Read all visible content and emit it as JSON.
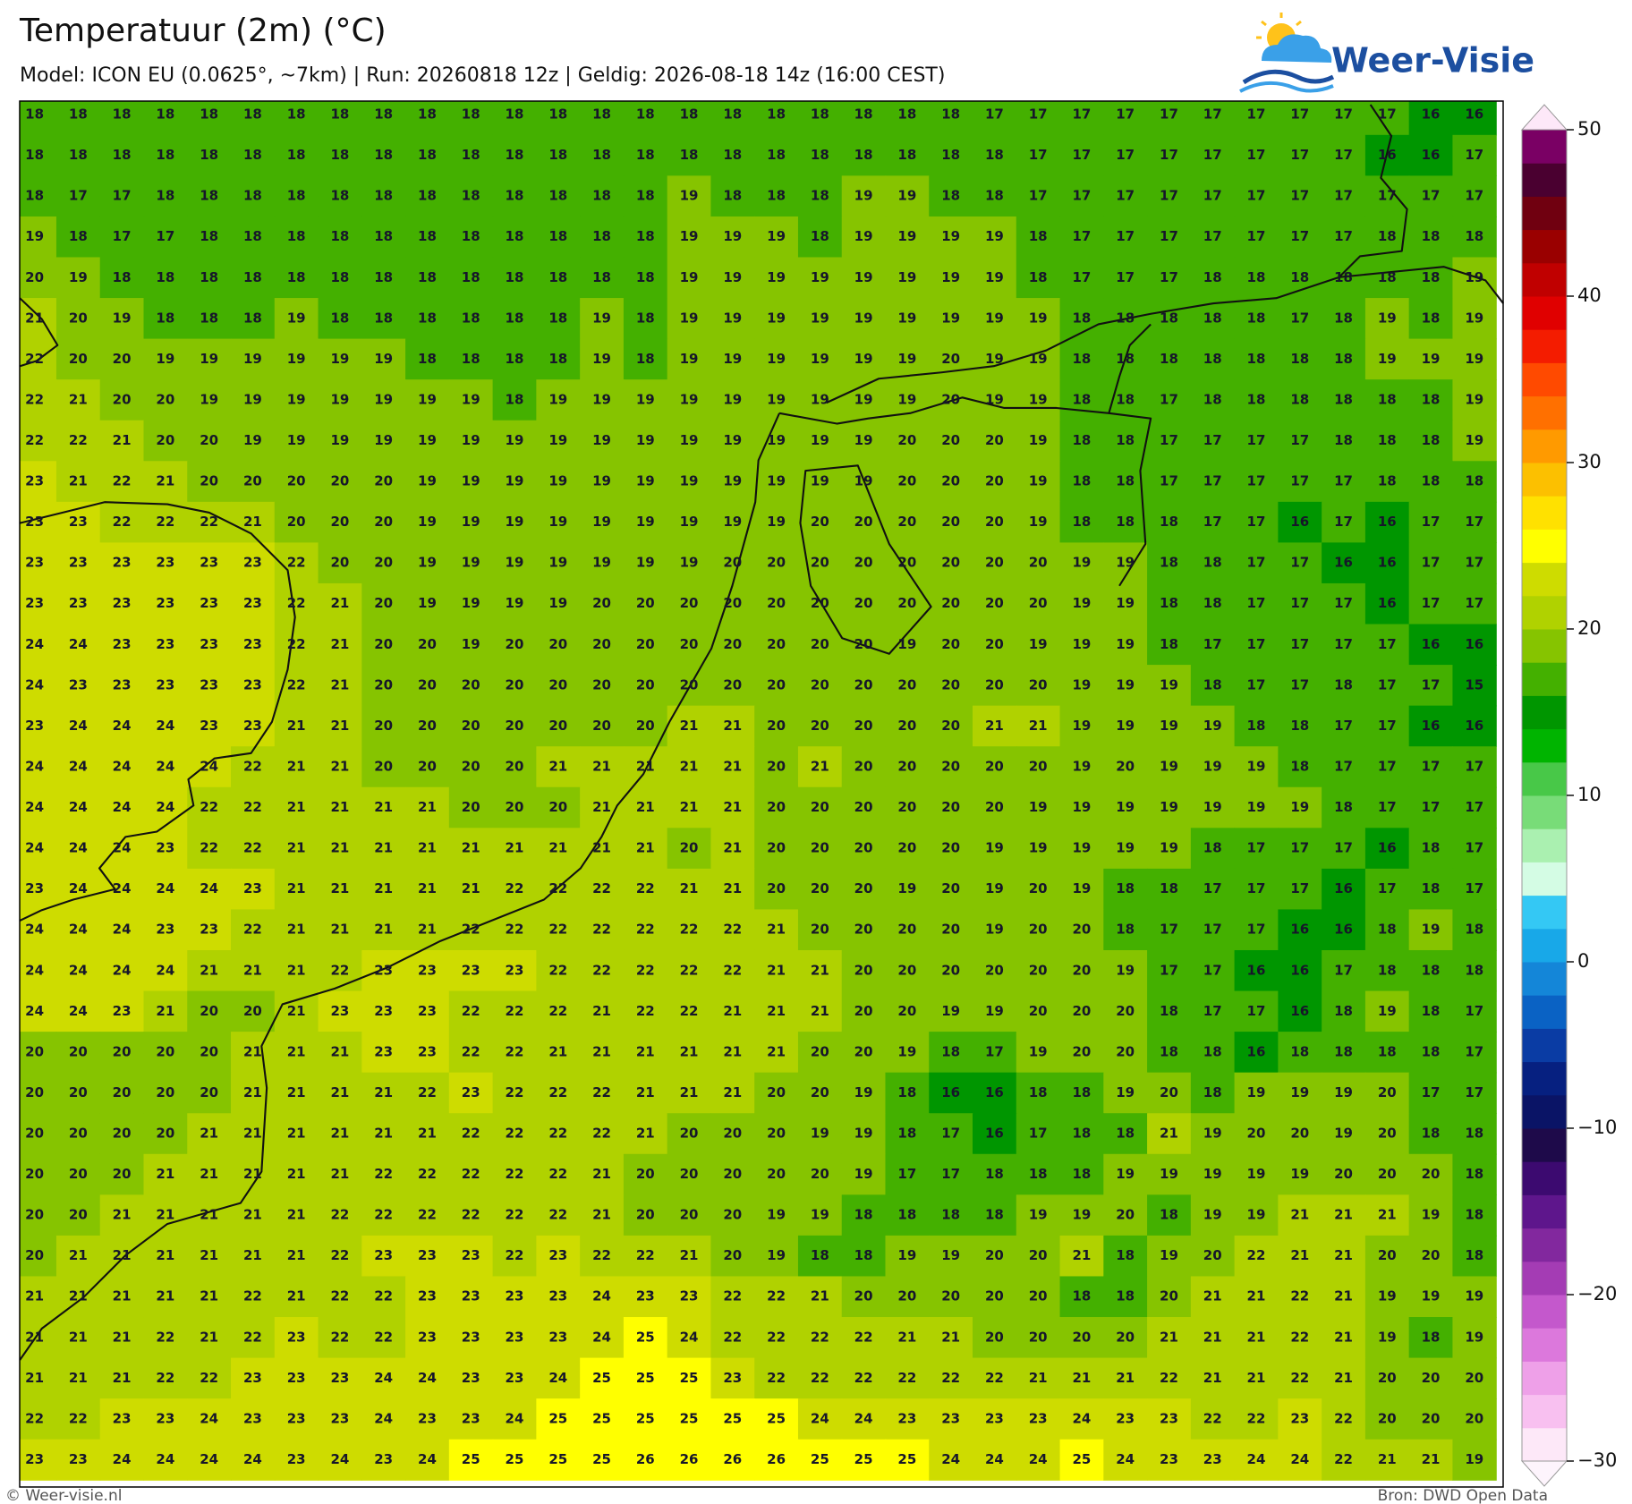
{
  "title": "Temperatuur (2m) (°C)",
  "subtitle": "Model: ICON EU (0.0625°, ~7km)  |  Run: 20260818 12z  |  Geldig: 2026-08-18 14z (16:00 CEST)",
  "logo_text": "Weer-Visie",
  "map": {
    "type": "heatmap",
    "values": [
      [
        18,
        18,
        18,
        18,
        18,
        18,
        18,
        18,
        18,
        18,
        18,
        18,
        18,
        18,
        18,
        18,
        18,
        18,
        18,
        18,
        18,
        18,
        17,
        17,
        17,
        17,
        17,
        17,
        17,
        17,
        17,
        17,
        16,
        16
      ],
      [
        18,
        18,
        18,
        18,
        18,
        18,
        18,
        18,
        18,
        18,
        18,
        18,
        18,
        18,
        18,
        18,
        18,
        18,
        18,
        18,
        18,
        18,
        18,
        17,
        17,
        17,
        17,
        17,
        17,
        17,
        17,
        16,
        16,
        17
      ],
      [
        18,
        17,
        17,
        18,
        18,
        18,
        18,
        18,
        18,
        18,
        18,
        18,
        18,
        18,
        18,
        19,
        18,
        18,
        18,
        19,
        19,
        18,
        18,
        17,
        17,
        17,
        17,
        17,
        17,
        17,
        17,
        17,
        17,
        17
      ],
      [
        19,
        18,
        17,
        17,
        18,
        18,
        18,
        18,
        18,
        18,
        18,
        18,
        18,
        18,
        18,
        19,
        19,
        19,
        18,
        19,
        19,
        19,
        19,
        18,
        17,
        17,
        17,
        17,
        17,
        17,
        17,
        18,
        18,
        18
      ],
      [
        20,
        19,
        18,
        18,
        18,
        18,
        18,
        18,
        18,
        18,
        18,
        18,
        18,
        18,
        18,
        19,
        19,
        19,
        19,
        19,
        19,
        19,
        19,
        18,
        17,
        17,
        17,
        18,
        18,
        18,
        18,
        18,
        18,
        19
      ],
      [
        21,
        20,
        19,
        18,
        18,
        18,
        19,
        18,
        18,
        18,
        18,
        18,
        18,
        19,
        18,
        19,
        19,
        19,
        19,
        19,
        19,
        19,
        19,
        19,
        18,
        18,
        18,
        18,
        18,
        17,
        18,
        19,
        18,
        19
      ],
      [
        22,
        20,
        20,
        19,
        19,
        19,
        19,
        19,
        19,
        18,
        18,
        18,
        18,
        19,
        18,
        19,
        19,
        19,
        19,
        19,
        19,
        20,
        19,
        19,
        18,
        18,
        18,
        18,
        18,
        18,
        18,
        19,
        19,
        19
      ],
      [
        22,
        21,
        20,
        20,
        19,
        19,
        19,
        19,
        19,
        19,
        19,
        18,
        19,
        19,
        19,
        19,
        19,
        19,
        19,
        19,
        19,
        20,
        19,
        19,
        18,
        18,
        17,
        18,
        18,
        18,
        18,
        18,
        18,
        19
      ],
      [
        22,
        22,
        21,
        20,
        20,
        19,
        19,
        19,
        19,
        19,
        19,
        19,
        19,
        19,
        19,
        19,
        19,
        19,
        19,
        19,
        20,
        20,
        20,
        19,
        18,
        18,
        17,
        17,
        17,
        17,
        18,
        18,
        18,
        19
      ],
      [
        23,
        21,
        22,
        21,
        20,
        20,
        20,
        20,
        20,
        19,
        19,
        19,
        19,
        19,
        19,
        19,
        19,
        19,
        19,
        19,
        20,
        20,
        20,
        19,
        18,
        18,
        17,
        17,
        17,
        17,
        17,
        18,
        18,
        18
      ],
      [
        23,
        23,
        22,
        22,
        22,
        21,
        20,
        20,
        20,
        19,
        19,
        19,
        19,
        19,
        19,
        19,
        19,
        19,
        20,
        20,
        20,
        20,
        20,
        19,
        18,
        18,
        18,
        17,
        17,
        16,
        17,
        16,
        17,
        17
      ],
      [
        23,
        23,
        23,
        23,
        23,
        23,
        22,
        20,
        20,
        19,
        19,
        19,
        19,
        19,
        19,
        19,
        20,
        20,
        20,
        20,
        20,
        20,
        20,
        20,
        19,
        19,
        18,
        18,
        17,
        17,
        16,
        16,
        17,
        17
      ],
      [
        23,
        23,
        23,
        23,
        23,
        23,
        22,
        21,
        20,
        19,
        19,
        19,
        19,
        20,
        20,
        20,
        20,
        20,
        20,
        20,
        20,
        20,
        20,
        20,
        19,
        19,
        18,
        18,
        17,
        17,
        17,
        16,
        17,
        17
      ],
      [
        24,
        24,
        23,
        23,
        23,
        23,
        22,
        21,
        20,
        20,
        19,
        20,
        20,
        20,
        20,
        20,
        20,
        20,
        20,
        20,
        19,
        20,
        20,
        19,
        19,
        19,
        18,
        17,
        17,
        17,
        17,
        17,
        16,
        16
      ],
      [
        24,
        23,
        23,
        23,
        23,
        23,
        22,
        21,
        20,
        20,
        20,
        20,
        20,
        20,
        20,
        20,
        20,
        20,
        20,
        20,
        20,
        20,
        20,
        20,
        19,
        19,
        19,
        18,
        17,
        17,
        18,
        17,
        17,
        15
      ],
      [
        23,
        24,
        24,
        24,
        23,
        23,
        21,
        21,
        20,
        20,
        20,
        20,
        20,
        20,
        20,
        21,
        21,
        20,
        20,
        20,
        20,
        20,
        21,
        21,
        19,
        19,
        19,
        19,
        18,
        18,
        17,
        17,
        16,
        16
      ],
      [
        24,
        24,
        24,
        24,
        24,
        22,
        21,
        21,
        20,
        20,
        20,
        20,
        21,
        21,
        21,
        21,
        21,
        20,
        21,
        20,
        20,
        20,
        20,
        20,
        19,
        20,
        19,
        19,
        19,
        18,
        17,
        17,
        17,
        17
      ],
      [
        24,
        24,
        24,
        24,
        22,
        22,
        21,
        21,
        21,
        21,
        20,
        20,
        20,
        21,
        21,
        21,
        21,
        20,
        20,
        20,
        20,
        20,
        20,
        19,
        19,
        19,
        19,
        19,
        19,
        19,
        18,
        17,
        17,
        17
      ],
      [
        24,
        24,
        24,
        23,
        22,
        22,
        21,
        21,
        21,
        21,
        21,
        21,
        21,
        21,
        21,
        20,
        21,
        20,
        20,
        20,
        20,
        20,
        19,
        19,
        19,
        19,
        19,
        18,
        17,
        17,
        17,
        16,
        18,
        17
      ],
      [
        23,
        24,
        24,
        24,
        24,
        23,
        21,
        21,
        21,
        21,
        21,
        22,
        22,
        22,
        22,
        21,
        21,
        20,
        20,
        20,
        19,
        20,
        19,
        20,
        19,
        18,
        18,
        17,
        17,
        17,
        16,
        17,
        18,
        17
      ],
      [
        24,
        24,
        24,
        23,
        23,
        22,
        21,
        21,
        21,
        21,
        22,
        22,
        22,
        22,
        22,
        22,
        22,
        21,
        20,
        20,
        20,
        20,
        19,
        20,
        20,
        18,
        17,
        17,
        17,
        16,
        16,
        18,
        19,
        18
      ],
      [
        24,
        24,
        24,
        24,
        21,
        21,
        21,
        22,
        23,
        23,
        23,
        23,
        22,
        22,
        22,
        22,
        22,
        21,
        21,
        20,
        20,
        20,
        20,
        20,
        20,
        19,
        17,
        17,
        16,
        16,
        17,
        18,
        18,
        18
      ],
      [
        24,
        24,
        23,
        21,
        20,
        20,
        21,
        23,
        23,
        23,
        22,
        22,
        22,
        21,
        22,
        22,
        21,
        21,
        21,
        20,
        20,
        19,
        19,
        20,
        20,
        20,
        18,
        17,
        17,
        16,
        18,
        19,
        18,
        17
      ],
      [
        20,
        20,
        20,
        20,
        20,
        21,
        21,
        21,
        23,
        23,
        22,
        22,
        21,
        21,
        21,
        21,
        21,
        21,
        20,
        20,
        19,
        18,
        17,
        19,
        20,
        20,
        18,
        18,
        16,
        18,
        18,
        18,
        18,
        17
      ],
      [
        20,
        20,
        20,
        20,
        20,
        21,
        21,
        21,
        21,
        22,
        23,
        22,
        22,
        22,
        21,
        21,
        21,
        20,
        20,
        19,
        18,
        16,
        16,
        18,
        18,
        19,
        20,
        18,
        19,
        19,
        19,
        20,
        17,
        17
      ],
      [
        20,
        20,
        20,
        20,
        21,
        21,
        21,
        21,
        21,
        21,
        22,
        22,
        22,
        22,
        21,
        20,
        20,
        20,
        19,
        19,
        18,
        17,
        16,
        17,
        18,
        18,
        21,
        19,
        20,
        20,
        19,
        20,
        18,
        18
      ],
      [
        20,
        20,
        20,
        21,
        21,
        21,
        21,
        21,
        22,
        22,
        22,
        22,
        22,
        21,
        20,
        20,
        20,
        20,
        20,
        19,
        17,
        17,
        18,
        18,
        18,
        19,
        19,
        19,
        19,
        19,
        20,
        20,
        20,
        18
      ],
      [
        20,
        20,
        21,
        21,
        21,
        21,
        21,
        22,
        22,
        22,
        22,
        22,
        22,
        21,
        20,
        20,
        20,
        19,
        19,
        18,
        18,
        18,
        18,
        19,
        19,
        20,
        18,
        19,
        19,
        21,
        21,
        21,
        19,
        18
      ],
      [
        20,
        21,
        21,
        21,
        21,
        21,
        21,
        22,
        23,
        23,
        23,
        22,
        23,
        22,
        22,
        21,
        20,
        19,
        18,
        18,
        19,
        19,
        20,
        20,
        21,
        18,
        19,
        20,
        22,
        21,
        21,
        20,
        20,
        18
      ],
      [
        21,
        21,
        21,
        21,
        21,
        22,
        21,
        22,
        22,
        23,
        23,
        23,
        23,
        24,
        23,
        23,
        22,
        22,
        21,
        20,
        20,
        20,
        20,
        20,
        18,
        18,
        20,
        21,
        21,
        22,
        21,
        19,
        19,
        19
      ],
      [
        21,
        21,
        21,
        22,
        21,
        22,
        23,
        22,
        22,
        23,
        23,
        23,
        23,
        24,
        25,
        24,
        22,
        22,
        22,
        22,
        21,
        21,
        20,
        20,
        20,
        20,
        21,
        21,
        21,
        22,
        21,
        19,
        18,
        19
      ],
      [
        21,
        21,
        21,
        22,
        22,
        23,
        23,
        23,
        24,
        24,
        23,
        23,
        24,
        25,
        25,
        25,
        23,
        22,
        22,
        22,
        22,
        22,
        22,
        21,
        21,
        21,
        22,
        21,
        21,
        22,
        21,
        20,
        20,
        20
      ],
      [
        22,
        22,
        23,
        23,
        24,
        23,
        23,
        23,
        24,
        23,
        23,
        24,
        25,
        25,
        25,
        25,
        25,
        25,
        24,
        24,
        23,
        23,
        23,
        23,
        24,
        23,
        23,
        22,
        22,
        23,
        22,
        20,
        20,
        20
      ],
      [
        23,
        23,
        24,
        24,
        24,
        24,
        23,
        24,
        23,
        24,
        25,
        25,
        25,
        25,
        26,
        26,
        26,
        26,
        25,
        25,
        25,
        24,
        24,
        24,
        25,
        24,
        23,
        23,
        24,
        24,
        22,
        21,
        21,
        19
      ]
    ]
  },
  "colorbar": {
    "lim": [
      -30,
      50
    ],
    "ticks": [
      {
        "value": -30,
        "label": "−30"
      },
      {
        "value": -20,
        "label": "−20"
      },
      {
        "value": -10,
        "label": "−10"
      },
      0,
      10,
      20,
      30,
      40,
      50
    ],
    "colors": [
      "#fde8f8",
      "#f8c0f0",
      "#eea0e8",
      "#dc78dc",
      "#c458cc",
      "#a43cb4",
      "#82289e",
      "#5e168c",
      "#3c0a70",
      "#1e0a4a",
      "#0a1466",
      "#062080",
      "#0a3ca4",
      "#0a62c4",
      "#1486d8",
      "#18a8e8",
      "#34c8f4",
      "#d4fce4",
      "#aaf0b0",
      "#78dc78",
      "#48c848",
      "#00b400",
      "#009600",
      "#44b000",
      "#86c400",
      "#b0d200",
      "#cedc00",
      "#ffff00",
      "#ffe100",
      "#fcc000",
      "#ff9a00",
      "#ff7000",
      "#ff4a00",
      "#f41c00",
      "#e00000",
      "#c00000",
      "#9a0000",
      "#700010",
      "#4a0030",
      "#7a0064"
    ]
  },
  "footer": {
    "left": "© Weer-visie.nl",
    "right": "Bron: DWD Open Data"
  }
}
